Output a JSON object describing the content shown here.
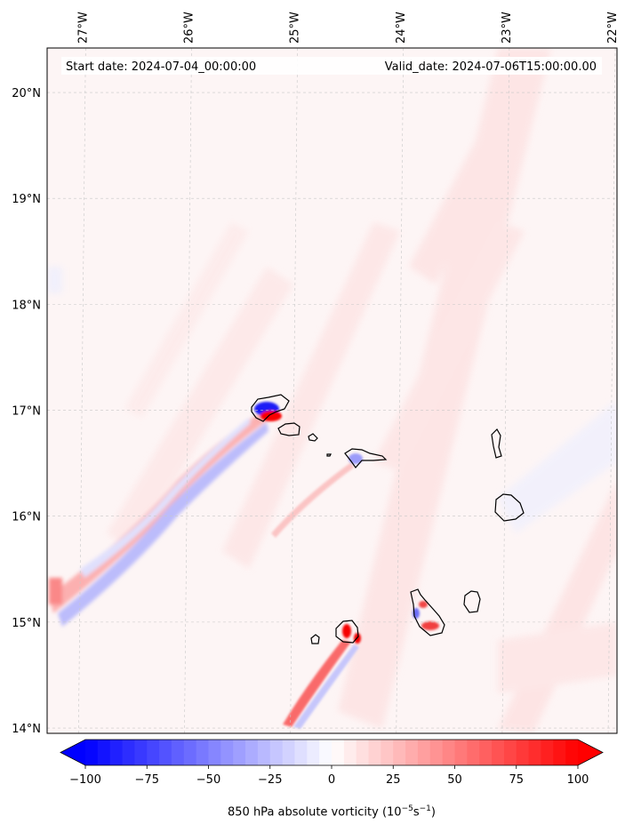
{
  "map": {
    "start_label": "Start date: 2024-07-04_00:00:00",
    "valid_label": "Valid_date: 2024-07-06T15:00:00.00",
    "lon_ticks": [
      {
        "lon": -27,
        "label": "27°W"
      },
      {
        "lon": -26,
        "label": "26°W"
      },
      {
        "lon": -25,
        "label": "25°W"
      },
      {
        "lon": -24,
        "label": "24°W"
      },
      {
        "lon": -23,
        "label": "23°W"
      },
      {
        "lon": -22,
        "label": "22°W"
      }
    ],
    "lat_ticks": [
      {
        "lat": 20,
        "label": "20°N"
      },
      {
        "lat": 19,
        "label": "19°N"
      },
      {
        "lat": 18,
        "label": "18°N"
      },
      {
        "lat": 17,
        "label": "17°N"
      },
      {
        "lat": 16,
        "label": "16°N"
      },
      {
        "lat": 15,
        "label": "15°N"
      },
      {
        "lat": 14,
        "label": "14°N"
      }
    ],
    "lon_range": [
      -27.33,
      -21.95
    ],
    "lat_range": [
      13.95,
      20.42
    ],
    "field": "850 hPa absolute vorticity",
    "colormap": "bwr"
  },
  "colorbar": {
    "title_main": "850 hPa absolute vorticity (10",
    "title_exp1": "−5",
    "title_mid": "s",
    "title_exp2": "−1",
    "title_end": ")",
    "min": -100,
    "max": 100,
    "ticks": [
      {
        "value": -100,
        "label": "−100"
      },
      {
        "value": -75,
        "label": "−75"
      },
      {
        "value": -50,
        "label": "−50"
      },
      {
        "value": -25,
        "label": "−25"
      },
      {
        "value": 0,
        "label": "0"
      },
      {
        "value": 25,
        "label": "25"
      },
      {
        "value": 50,
        "label": "50"
      },
      {
        "value": 75,
        "label": "75"
      },
      {
        "value": 100,
        "label": "100"
      }
    ]
  },
  "colors": {
    "negative": "#0000ff",
    "positive": "#ff0000",
    "neutral": "#ffffff",
    "background_pos": "#fdf3f3",
    "coast": "#000000",
    "grid": "#c8c8c8"
  }
}
